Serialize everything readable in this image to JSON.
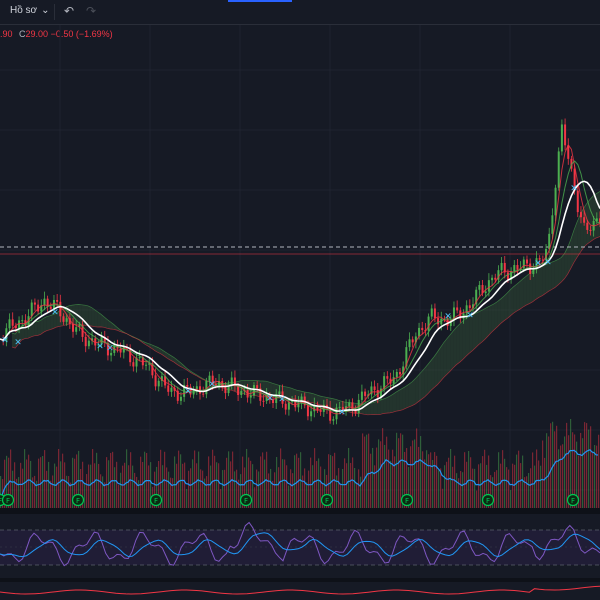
{
  "toolbar": {
    "profile_label": "Hồ sơ",
    "chevron": "⌄",
    "undo_icon": "↶",
    "redo_icon": "↷"
  },
  "legend": {
    "open_fragment": ".90",
    "close_label": "C",
    "close_value": "29.00",
    "change": "−0.50",
    "change_pct": "(−1.69%)"
  },
  "event_markers": {
    "label": "F",
    "count": 8
  },
  "colors": {
    "background": "#161a25",
    "candle_up": "#4caf50",
    "candle_down": "#f23645",
    "ma_white": "#ffffff",
    "cloud_bull": "#2f4a34",
    "cloud_bear": "#5a2f35",
    "rsi_line": "#7e57c2",
    "volume_ma": "#2196f3",
    "event_marker": "#00c853",
    "price_line": "#b2b5be"
  }
}
